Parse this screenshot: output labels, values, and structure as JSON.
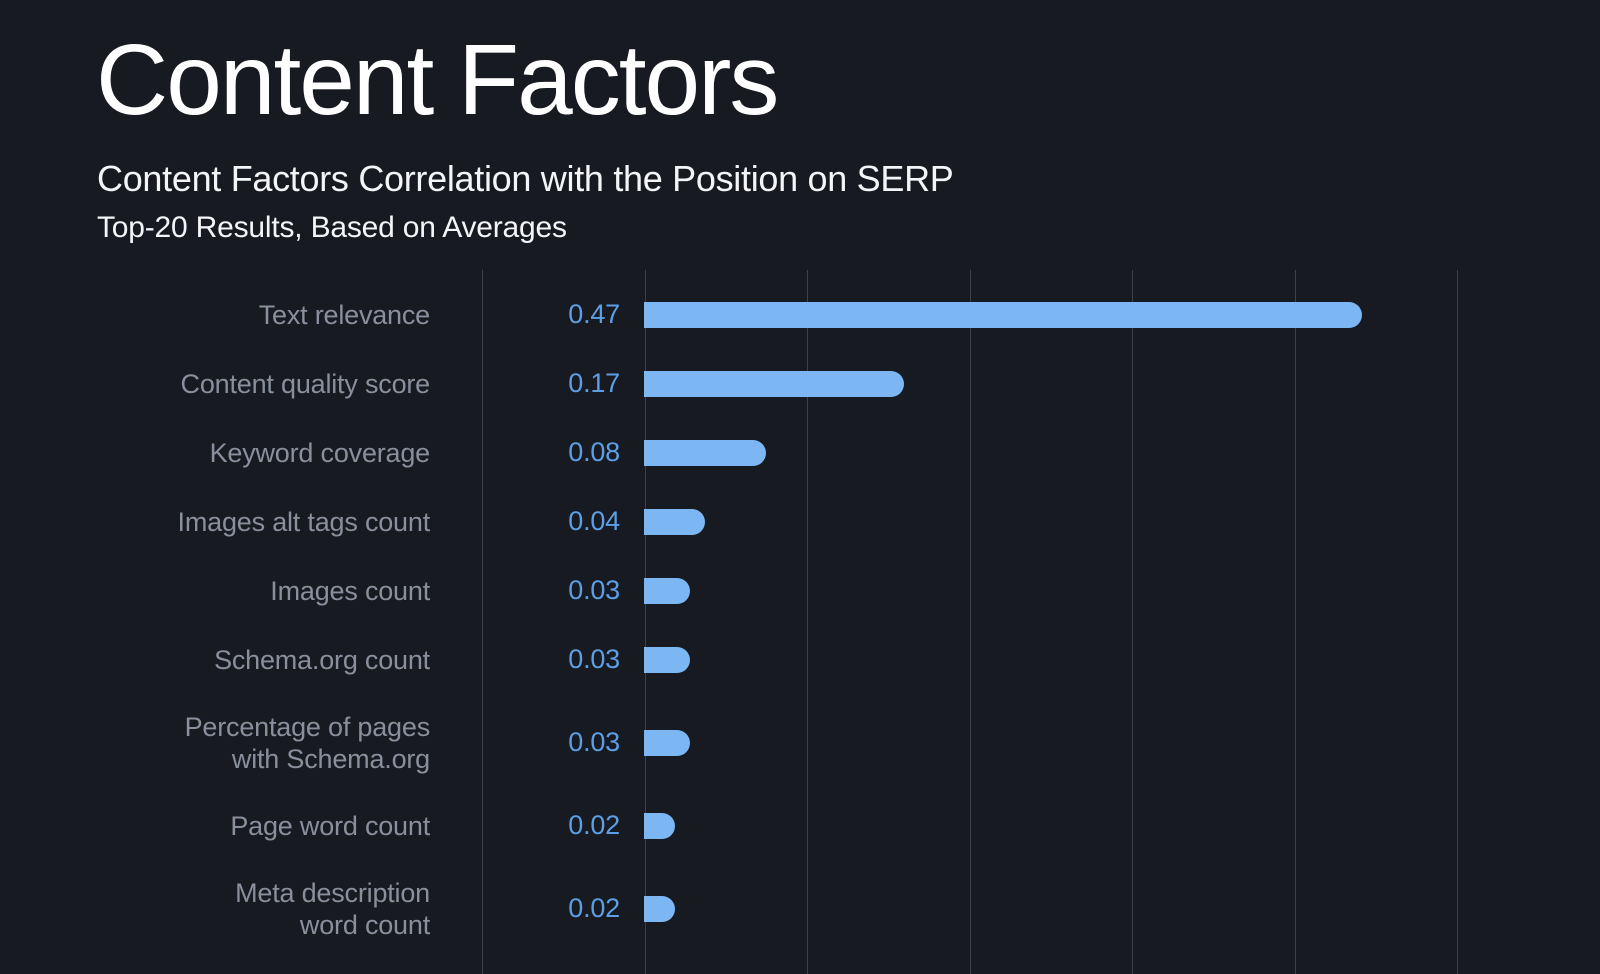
{
  "page": {
    "title": "Content Factors",
    "subtitle": "Content Factors Correlation with the Position on SERP",
    "subsubtitle": "Top-20 Results, Based on Averages"
  },
  "colors": {
    "background": "#171A21",
    "bar": "#7CB6F3",
    "value_text": "#5C9FE6",
    "category_text": "#8A8F9D",
    "gridline": "#3C4049",
    "heading_text": "#FFFFFF"
  },
  "chart_data": {
    "type": "bar",
    "orientation": "horizontal",
    "title": "Content Factors Correlation with the Position on SERP",
    "subtitle": "Top-20 Results, Based on Averages",
    "grid": true,
    "legend": false,
    "xlim": [
      0,
      0.5
    ],
    "categories": [
      "Text relevance",
      "Content quality score",
      "Keyword coverage",
      "Images alt tags count",
      "Images count",
      "Schema.org count",
      "Percentage of pages with Schema.org",
      "Page word count",
      "Meta description word count"
    ],
    "values": [
      0.47,
      0.17,
      0.08,
      0.04,
      0.03,
      0.03,
      0.03,
      0.02,
      0.02
    ],
    "rows": [
      {
        "label_lines": [
          "Text relevance"
        ],
        "value": 0.47,
        "display_value": "0.47"
      },
      {
        "label_lines": [
          "Content quality score"
        ],
        "value": 0.17,
        "display_value": "0.17"
      },
      {
        "label_lines": [
          "Keyword coverage"
        ],
        "value": 0.08,
        "display_value": "0.08"
      },
      {
        "label_lines": [
          "Images alt tags count"
        ],
        "value": 0.04,
        "display_value": "0.04"
      },
      {
        "label_lines": [
          "Images count"
        ],
        "value": 0.03,
        "display_value": "0.03"
      },
      {
        "label_lines": [
          "Schema.org count"
        ],
        "value": 0.03,
        "display_value": "0.03"
      },
      {
        "label_lines": [
          "Percentage of pages",
          "with Schema.org"
        ],
        "value": 0.03,
        "display_value": "0.03"
      },
      {
        "label_lines": [
          "Page word count"
        ],
        "value": 0.02,
        "display_value": "0.02"
      },
      {
        "label_lines": [
          "Meta description",
          "word count"
        ],
        "value": 0.02,
        "display_value": "0.02"
      }
    ]
  }
}
